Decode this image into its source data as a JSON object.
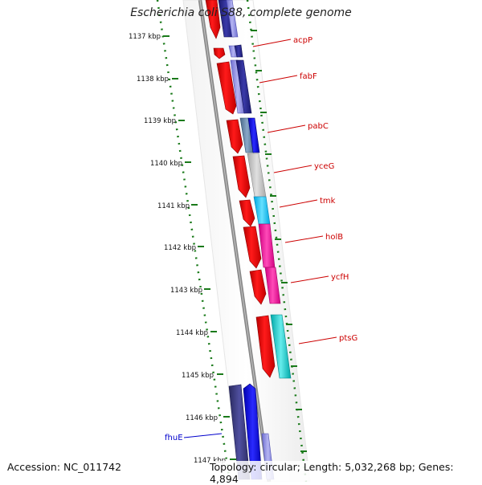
{
  "title": "Escherichia coli S88, complete genome",
  "accession": "Accession: NC_011742",
  "summary": "Topology: circular; Length: 5,032,268 bp; Genes: 4,894",
  "colors": {
    "cds": "#ff0000",
    "label": "#cc0000",
    "label_blue": "#0000cc",
    "axis": "#1a7a1a",
    "backbone": "#888888"
  },
  "ticks": [
    "1137 kbp",
    "1138 kbp",
    "1139 kbp",
    "1140 kbp",
    "1141 kbp",
    "1142 kbp",
    "1143 kbp",
    "1144 kbp",
    "1145 kbp",
    "1146 kbp",
    "1147 kbp"
  ],
  "genes": [
    "acpP",
    "fabF",
    "pabC",
    "yceG",
    "tmk",
    "holB",
    "ycfH",
    "ptsG",
    "fhuE"
  ]
}
